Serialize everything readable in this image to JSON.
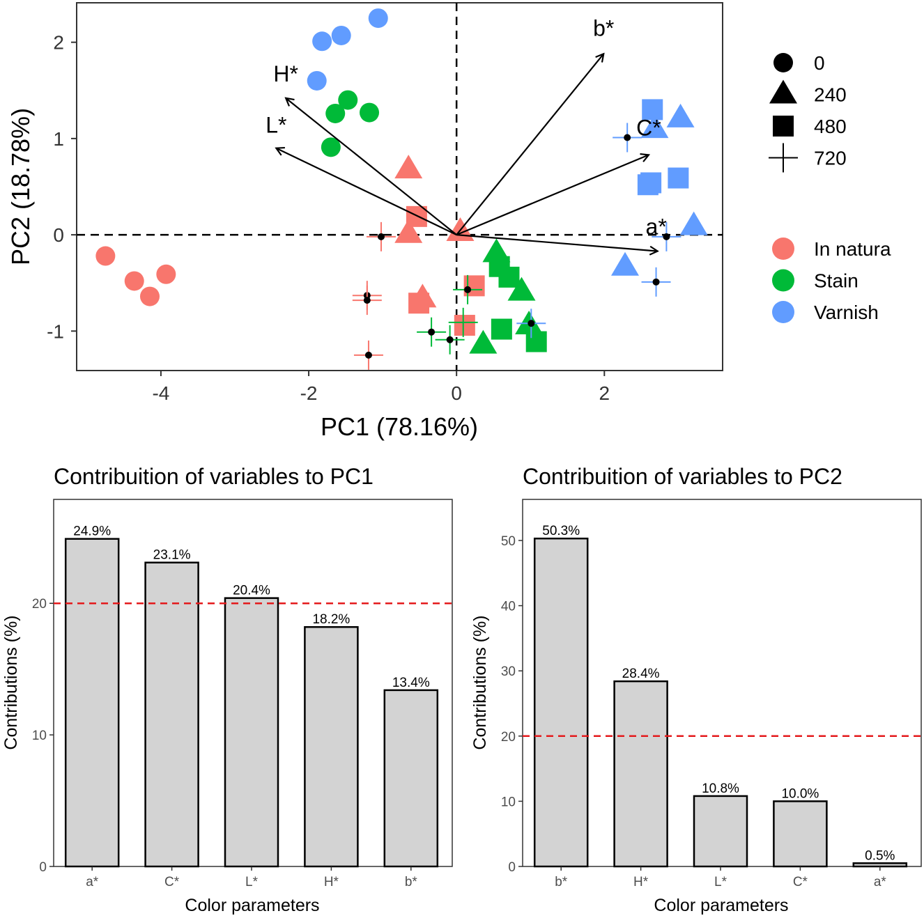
{
  "chart_data": [
    {
      "type": "scatter",
      "title": "",
      "xlabel": "PC1 (78.16%)",
      "ylabel": "PC2 (18.78%)",
      "xlim": [
        -5.14,
        3.6
      ],
      "ylim": [
        -1.41,
        2.41
      ],
      "xticks": [
        "-4",
        "-2",
        "0",
        "2"
      ],
      "xtick_values": [
        -4,
        -2,
        0,
        2
      ],
      "yticks": [
        "-1",
        "0",
        "1",
        "2"
      ],
      "ytick_values": [
        -1,
        0,
        1,
        2
      ],
      "grid": false,
      "reference_lines": "dashed at x=0 and y=0",
      "legend_placement": "right",
      "colors": {
        "In natura": "#F8766D",
        "Stain": "#00BA38",
        "Varnish": "#619CFF"
      },
      "shape_legend": [
        {
          "label": "0",
          "shape": "circle"
        },
        {
          "label": "240",
          "shape": "triangle"
        },
        {
          "label": "480",
          "shape": "square"
        },
        {
          "label": "720",
          "shape": "cross"
        }
      ],
      "color_legend": [
        "In natura",
        "Stain",
        "Varnish"
      ],
      "points": [
        {
          "group": "In natura",
          "time": "0",
          "x": -4.75,
          "y": -0.22
        },
        {
          "group": "In natura",
          "time": "0",
          "x": -4.36,
          "y": -0.48
        },
        {
          "group": "In natura",
          "time": "0",
          "x": -4.15,
          "y": -0.64
        },
        {
          "group": "In natura",
          "time": "0",
          "x": -3.93,
          "y": -0.41
        },
        {
          "group": "In natura",
          "time": "240",
          "x": -0.65,
          "y": 0.68
        },
        {
          "group": "In natura",
          "time": "240",
          "x": -0.65,
          "y": 0.01
        },
        {
          "group": "In natura",
          "time": "240",
          "x": -0.46,
          "y": -0.66
        },
        {
          "group": "In natura",
          "time": "240",
          "x": 0.05,
          "y": 0.03
        },
        {
          "group": "In natura",
          "time": "480",
          "x": -0.54,
          "y": 0.19
        },
        {
          "group": "In natura",
          "time": "480",
          "x": -0.51,
          "y": -0.71
        },
        {
          "group": "In natura",
          "time": "480",
          "x": 0.24,
          "y": -0.53
        },
        {
          "group": "In natura",
          "time": "480",
          "x": 0.11,
          "y": -0.94
        },
        {
          "group": "In natura",
          "time": "720",
          "x": -1.02,
          "y": -0.02
        },
        {
          "group": "In natura",
          "time": "720",
          "x": -1.21,
          "y": -0.63
        },
        {
          "group": "In natura",
          "time": "720",
          "x": -1.21,
          "y": -0.68
        },
        {
          "group": "In natura",
          "time": "720",
          "x": -1.19,
          "y": -1.25
        },
        {
          "group": "Stain",
          "time": "0",
          "x": -1.7,
          "y": 0.91
        },
        {
          "group": "Stain",
          "time": "0",
          "x": -1.64,
          "y": 1.26
        },
        {
          "group": "Stain",
          "time": "0",
          "x": -1.47,
          "y": 1.4
        },
        {
          "group": "Stain",
          "time": "0",
          "x": -1.18,
          "y": 1.27
        },
        {
          "group": "Stain",
          "time": "240",
          "x": 0.54,
          "y": -0.19
        },
        {
          "group": "Stain",
          "time": "240",
          "x": 0.88,
          "y": -0.59
        },
        {
          "group": "Stain",
          "time": "240",
          "x": 0.98,
          "y": -0.94
        },
        {
          "group": "Stain",
          "time": "240",
          "x": 0.36,
          "y": -1.14
        },
        {
          "group": "Stain",
          "time": "480",
          "x": 0.58,
          "y": -0.33
        },
        {
          "group": "Stain",
          "time": "480",
          "x": 0.71,
          "y": -0.44
        },
        {
          "group": "Stain",
          "time": "480",
          "x": 0.61,
          "y": -0.98
        },
        {
          "group": "Stain",
          "time": "480",
          "x": 1.08,
          "y": -1.11
        },
        {
          "group": "Stain",
          "time": "720",
          "x": 0.15,
          "y": -0.57
        },
        {
          "group": "Stain",
          "time": "720",
          "x": -0.34,
          "y": -1.01
        },
        {
          "group": "Stain",
          "time": "720",
          "x": -0.09,
          "y": -1.09
        },
        {
          "group": "Stain",
          "time": "720",
          "x": 0.09,
          "y": -0.91
        },
        {
          "group": "Varnish",
          "time": "0",
          "x": -1.82,
          "y": 2.01
        },
        {
          "group": "Varnish",
          "time": "0",
          "x": -1.56,
          "y": 2.07
        },
        {
          "group": "Varnish",
          "time": "0",
          "x": -1.06,
          "y": 2.25
        },
        {
          "group": "Varnish",
          "time": "0",
          "x": -1.89,
          "y": 1.6
        },
        {
          "group": "Varnish",
          "time": "240",
          "x": 3.03,
          "y": 1.21
        },
        {
          "group": "Varnish",
          "time": "240",
          "x": 2.68,
          "y": 1.1
        },
        {
          "group": "Varnish",
          "time": "240",
          "x": 3.21,
          "y": 0.09
        },
        {
          "group": "Varnish",
          "time": "240",
          "x": 2.28,
          "y": -0.33
        },
        {
          "group": "Varnish",
          "time": "480",
          "x": 2.65,
          "y": 1.3
        },
        {
          "group": "Varnish",
          "time": "480",
          "x": 2.63,
          "y": 0.54
        },
        {
          "group": "Varnish",
          "time": "480",
          "x": 2.59,
          "y": 0.52
        },
        {
          "group": "Varnish",
          "time": "480",
          "x": 3.0,
          "y": 0.59
        },
        {
          "group": "Varnish",
          "time": "720",
          "x": 2.31,
          "y": 1.01
        },
        {
          "group": "Varnish",
          "time": "720",
          "x": 2.84,
          "y": -0.02
        },
        {
          "group": "Varnish",
          "time": "720",
          "x": 2.7,
          "y": -0.49
        },
        {
          "group": "Varnish",
          "time": "720",
          "x": 1.01,
          "y": -0.92
        }
      ],
      "loadings": [
        {
          "label": "b*",
          "x": 1.99,
          "y": 1.88
        },
        {
          "label": "C*",
          "x": 2.6,
          "y": 0.83
        },
        {
          "label": "a*",
          "x": 2.72,
          "y": -0.17
        },
        {
          "label": "H*",
          "x": -2.31,
          "y": 1.42
        },
        {
          "label": "L*",
          "x": -2.44,
          "y": 0.9
        }
      ]
    },
    {
      "type": "bar",
      "title": "Contribuition of variables to PC1",
      "xlabel": "Color parameters",
      "ylabel": "Contributions (%)",
      "categories": [
        "a*",
        "C*",
        "L*",
        "H*",
        "b*"
      ],
      "values": [
        24.9,
        23.1,
        20.4,
        18.2,
        13.4
      ],
      "data_labels": [
        "24.9%",
        "23.1%",
        "20.4%",
        "18.2%",
        "13.4%"
      ],
      "ylim": [
        0,
        27.9
      ],
      "yticks": [
        "0",
        "10",
        "20"
      ],
      "ytick_values": [
        0,
        10,
        20
      ],
      "reference_line": 20,
      "bar_color": "#D3D3D3",
      "reference_color": "#E41A1C"
    },
    {
      "type": "bar",
      "title": "Contribuition of variables to PC2",
      "xlabel": "Color parameters",
      "ylabel": "Contributions (%)",
      "categories": [
        "b*",
        "H*",
        "L*",
        "C*",
        "a*"
      ],
      "values": [
        50.3,
        28.4,
        10.8,
        10.0,
        0.5
      ],
      "data_labels": [
        "50.3%",
        "28.4%",
        "10.8%",
        "10.0%",
        "0.5%"
      ],
      "ylim": [
        0,
        56.3
      ],
      "yticks": [
        "0",
        "10",
        "20",
        "30",
        "40",
        "50"
      ],
      "ytick_values": [
        0,
        10,
        20,
        30,
        40,
        50
      ],
      "reference_line": 20,
      "bar_color": "#D3D3D3",
      "reference_color": "#E41A1C"
    }
  ]
}
